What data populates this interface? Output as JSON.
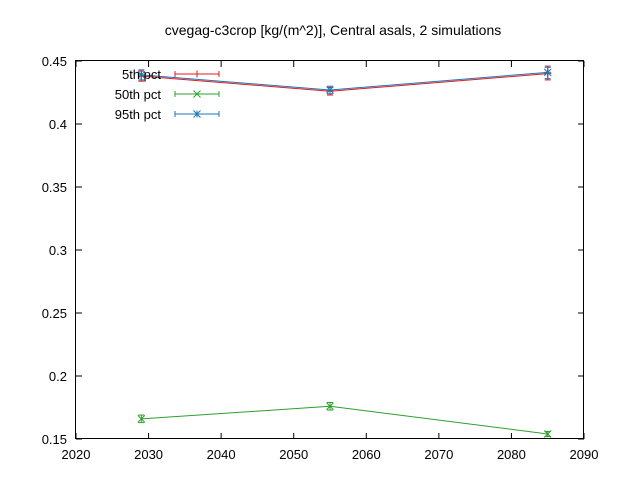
{
  "chart_data": {
    "type": "line",
    "title": "cvegag-c3crop [kg/(m^2)], Central asals, 2 simulations",
    "xlabel": "",
    "ylabel": "",
    "xlim": [
      2020,
      2090
    ],
    "ylim": [
      0.15,
      0.45
    ],
    "xticks": [
      2020,
      2030,
      2040,
      2050,
      2060,
      2070,
      2080,
      2090
    ],
    "xtick_labels": [
      "2020",
      "2030",
      "2040",
      "2050",
      "2060",
      "2070",
      "2080",
      "2090"
    ],
    "yticks": [
      0.15,
      0.2,
      0.25,
      0.3,
      0.35,
      0.4,
      0.45
    ],
    "ytick_labels": [
      "0.15",
      "0.2",
      "0.25",
      "0.3",
      "0.35",
      "0.4",
      "0.45"
    ],
    "grid": false,
    "legend_position": "top-left",
    "x": [
      2029,
      2055,
      2085
    ],
    "series": [
      {
        "name": "5th pct",
        "color": "#e41a1c",
        "marker": "plus",
        "values": [
          0.438,
          0.426,
          0.44
        ],
        "err": [
          0.004,
          0.003,
          0.005
        ]
      },
      {
        "name": "50th pct",
        "color": "#2ca02c",
        "marker": "cross",
        "values": [
          0.166,
          0.176,
          0.154
        ],
        "err": [
          0.003,
          0.003,
          0.002
        ]
      },
      {
        "name": "95th pct",
        "color": "#1f77b4",
        "marker": "star",
        "values": [
          0.439,
          0.427,
          0.441
        ],
        "err": [
          0.004,
          0.003,
          0.005
        ]
      }
    ]
  }
}
